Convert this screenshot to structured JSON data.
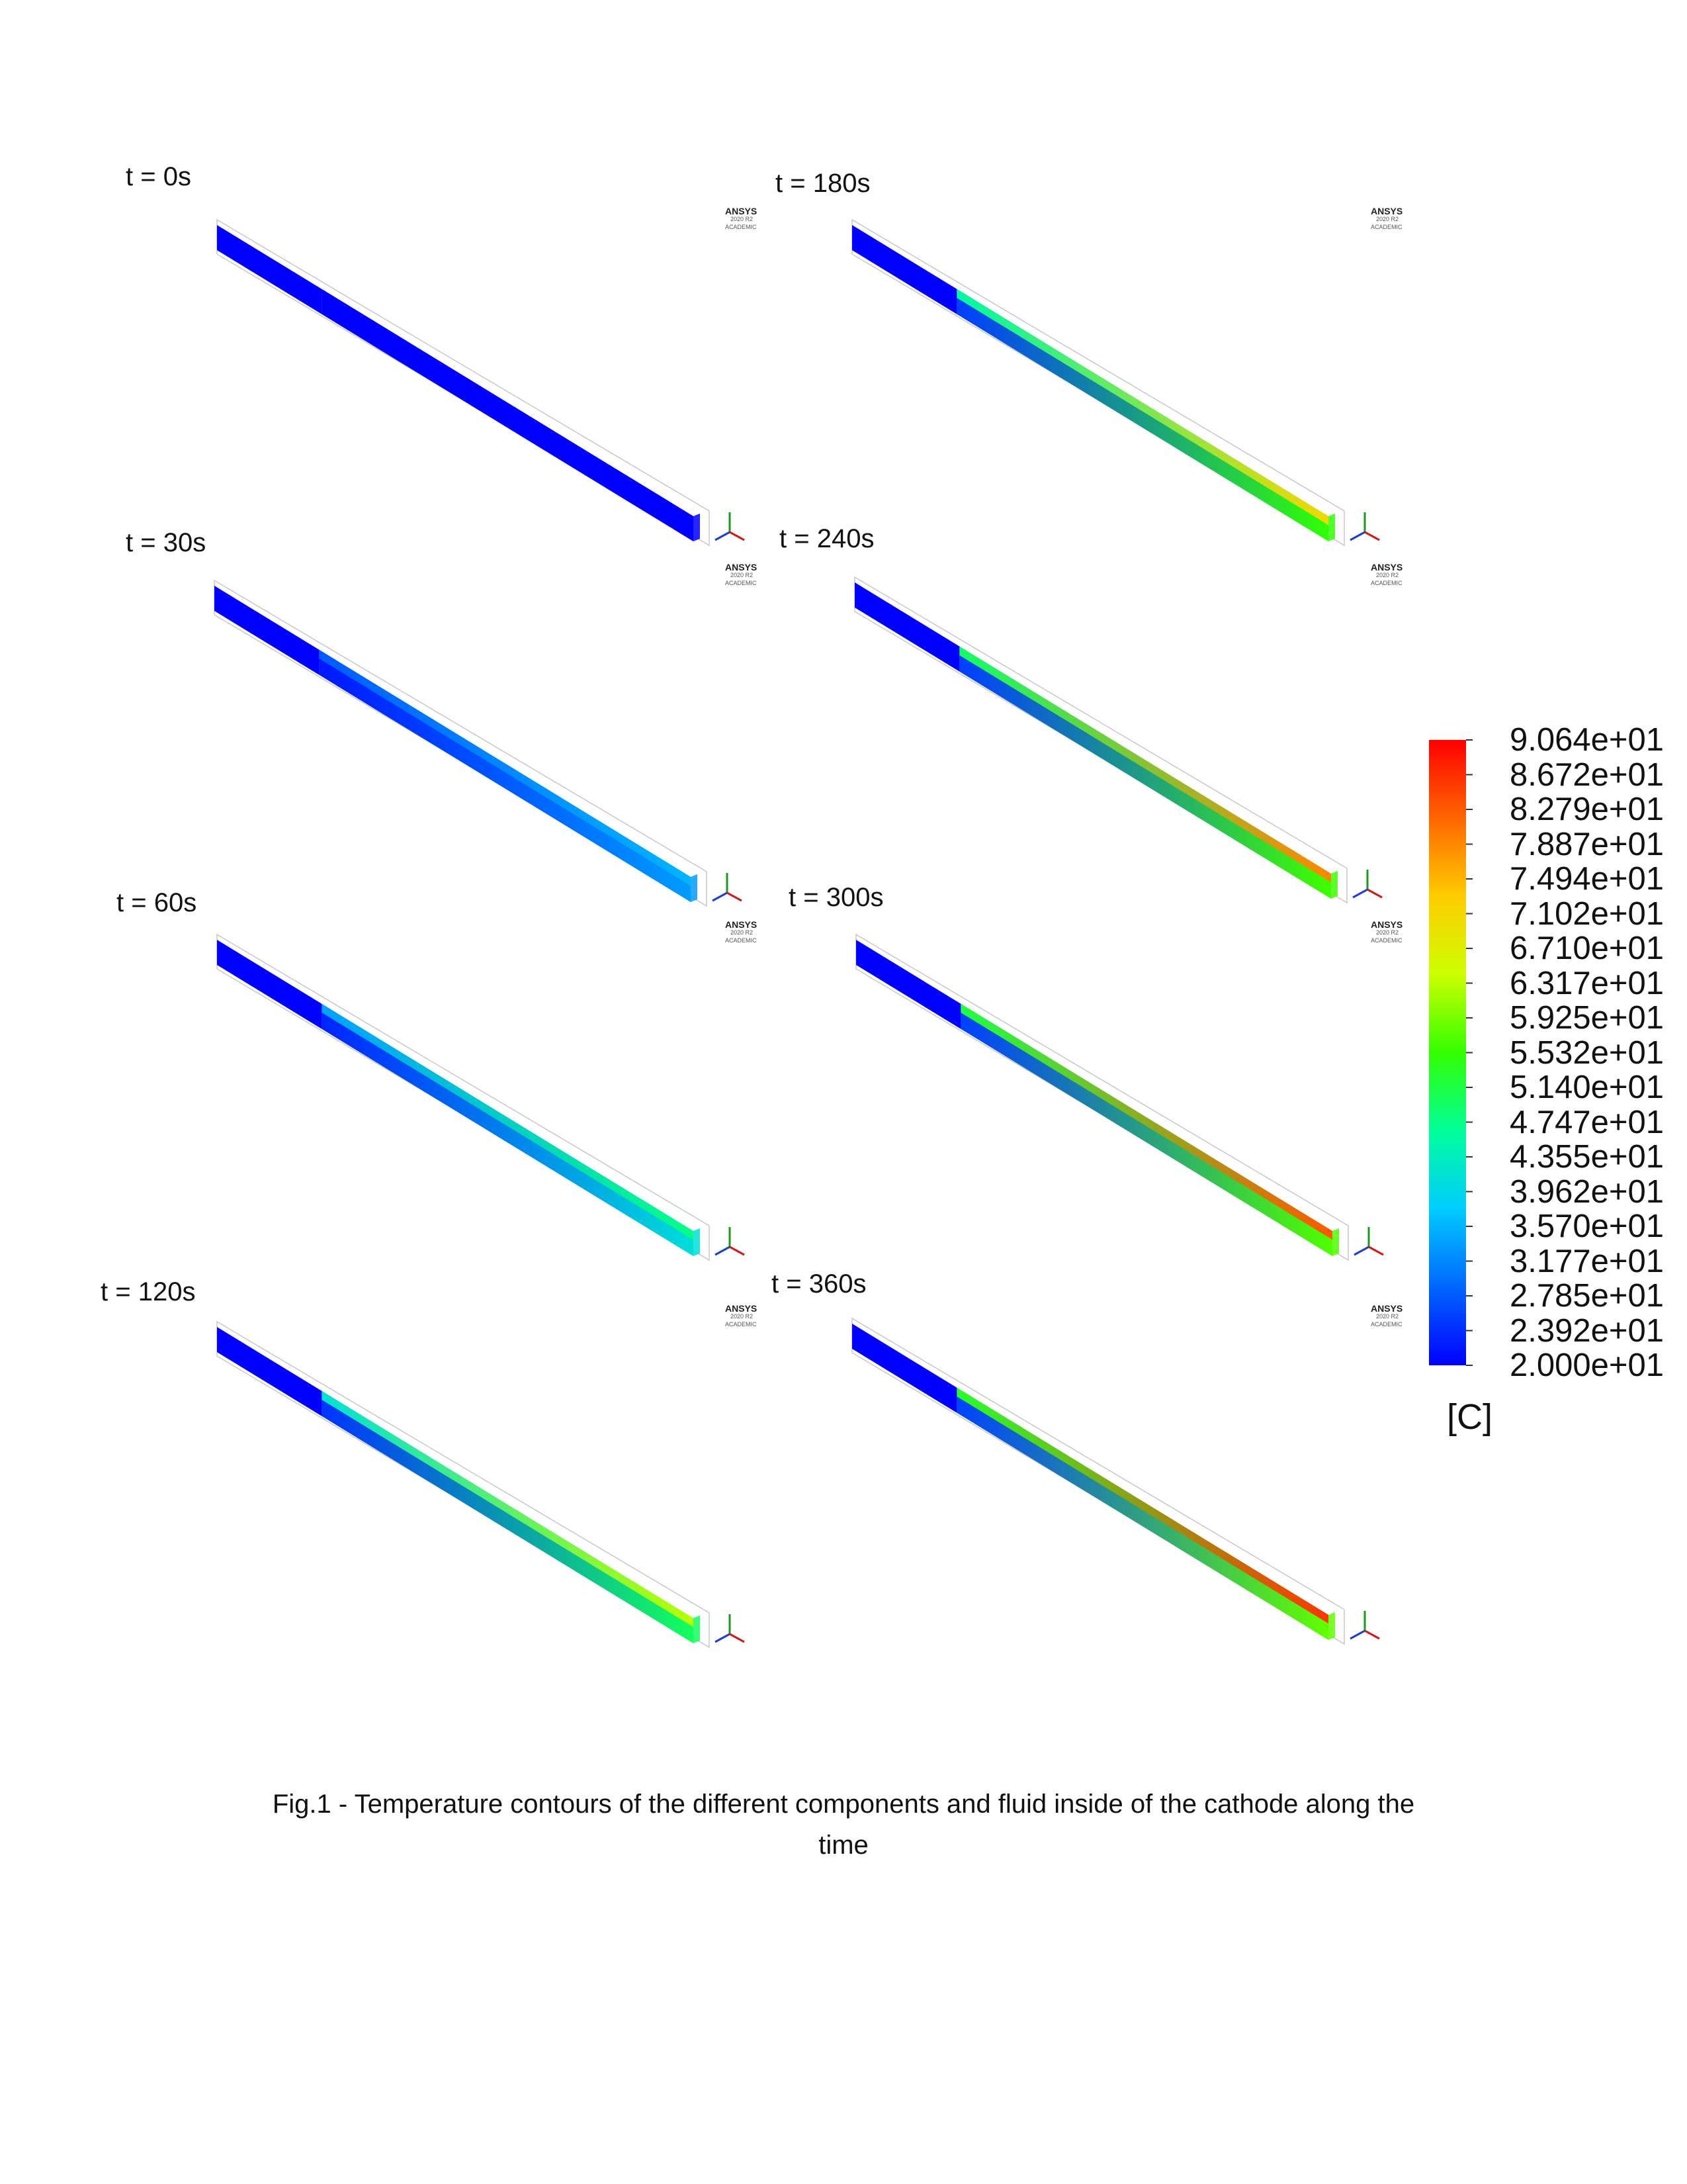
{
  "panels": [
    {
      "label": "t = 0s",
      "inlet_temp": 20.0,
      "outlet_temp": 20.0,
      "top_outlet_temp": 20.0
    },
    {
      "label": "t = 30s",
      "inlet_temp": 20.0,
      "outlet_temp": 33.5,
      "top_outlet_temp": 35.7
    },
    {
      "label": "t = 60s",
      "inlet_temp": 20.0,
      "outlet_temp": 41.0,
      "top_outlet_temp": 47.5
    },
    {
      "label": "t = 120s",
      "inlet_temp": 20.0,
      "outlet_temp": 50.0,
      "top_outlet_temp": 63.0
    },
    {
      "label": "t = 180s",
      "inlet_temp": 20.0,
      "outlet_temp": 55.0,
      "top_outlet_temp": 71.0
    },
    {
      "label": "t = 240s",
      "inlet_temp": 20.0,
      "outlet_temp": 56.0,
      "top_outlet_temp": 79.0
    },
    {
      "label": "t = 300s",
      "inlet_temp": 20.0,
      "outlet_temp": 57.0,
      "top_outlet_temp": 83.0
    },
    {
      "label": "t = 360s",
      "inlet_temp": 20.0,
      "outlet_temp": 58.0,
      "top_outlet_temp": 86.0
    }
  ],
  "software_logo": {
    "name": "ANSYS",
    "version": "2020 R2",
    "edition": "ACADEMIC"
  },
  "legend": {
    "labels": [
      "9.064e+01",
      "8.672e+01",
      "8.279e+01",
      "7.887e+01",
      "7.494e+01",
      "7.102e+01",
      "6.710e+01",
      "6.317e+01",
      "5.925e+01",
      "5.532e+01",
      "5.140e+01",
      "4.747e+01",
      "4.355e+01",
      "3.962e+01",
      "3.570e+01",
      "3.177e+01",
      "2.785e+01",
      "2.392e+01",
      "2.000e+01"
    ],
    "min": 20.0,
    "max": 90.64,
    "unit": "[C]",
    "colormap": [
      "#0000ff",
      "#0066ff",
      "#00ccff",
      "#00ff99",
      "#33ff00",
      "#ccff00",
      "#ffcc00",
      "#ff6600",
      "#ff0000"
    ]
  },
  "chart_data": {
    "type": "heatmap",
    "title": "",
    "variable": "Temperature",
    "unit": "[C]",
    "range": [
      20.0,
      90.64
    ],
    "frames": [
      {
        "time": "t = 0s",
        "max_temp_estimate": 20.0
      },
      {
        "time": "t = 30s",
        "max_temp_estimate": 35.7
      },
      {
        "time": "t = 60s",
        "max_temp_estimate": 47.5
      },
      {
        "time": "t = 120s",
        "max_temp_estimate": 63.0
      },
      {
        "time": "t = 180s",
        "max_temp_estimate": 71.0
      },
      {
        "time": "t = 240s",
        "max_temp_estimate": 79.0
      },
      {
        "time": "t = 300s",
        "max_temp_estimate": 83.0
      },
      {
        "time": "t = 360s",
        "max_temp_estimate": 86.0
      }
    ]
  },
  "caption": {
    "line1": "Fig.1 - Temperature contours of the different components and fluid inside of the cathode along the",
    "line2": "time"
  }
}
